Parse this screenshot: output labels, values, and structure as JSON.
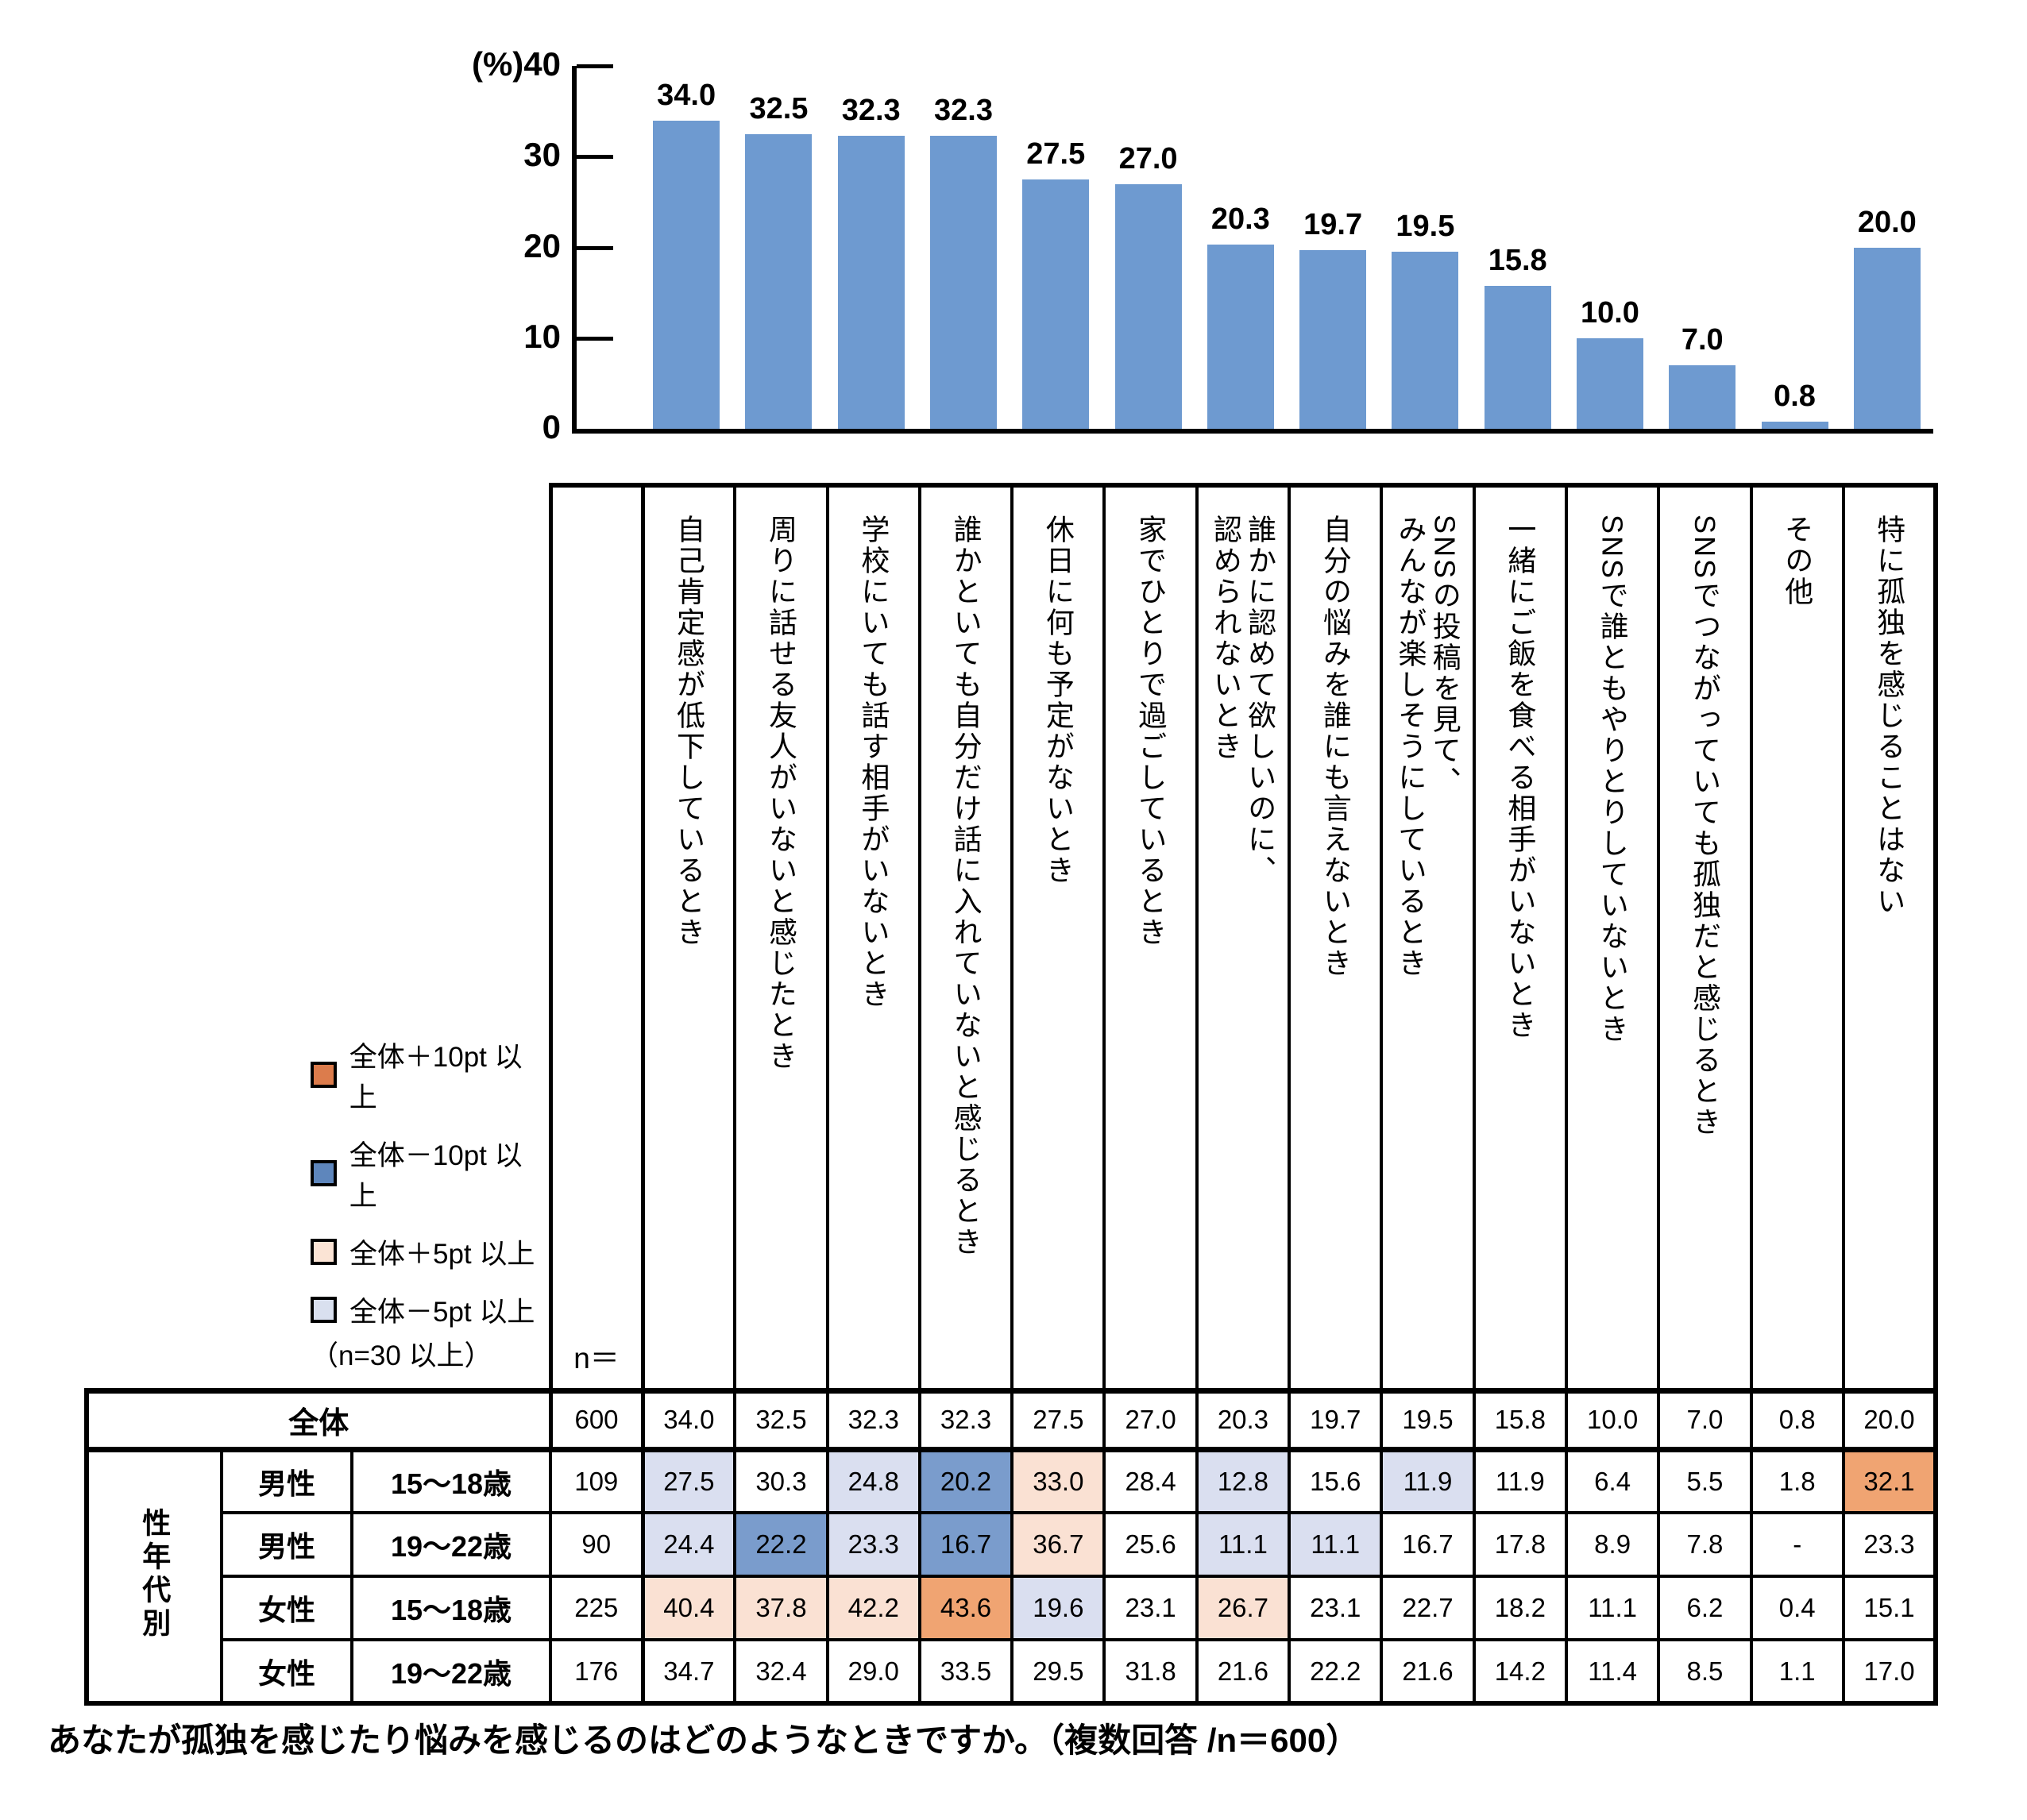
{
  "chart_data": {
    "type": "bar",
    "title": "",
    "unit_label": "(%)",
    "ylim": [
      0,
      40
    ],
    "grid": false,
    "bar_color": "#6E9AD0",
    "yticks": [
      {
        "value": 40,
        "label": "(%)40"
      },
      {
        "value": 30,
        "label": "30"
      },
      {
        "value": 20,
        "label": "20"
      },
      {
        "value": 10,
        "label": "10"
      },
      {
        "value": 0,
        "label": "0"
      }
    ],
    "categories": [
      "自己肯定感が低下しているとき",
      "周りに話せる友人がいないと感じたとき",
      "学校にいても話す相手がいないとき",
      "誰かといても自分だけ話に入れていないと感じるとき",
      "休日に何も予定がないとき",
      "家でひとりで過ごしているとき",
      "誰かに認めて欲しいのに、\n認められないとき",
      "自分の悩みを誰にも言えないとき",
      "SNSの投稿を見て、\nみんなが楽しそうにしているとき",
      "一緒にご飯を食べる相手がいないとき",
      "SNSで誰ともやりとりしていないとき",
      "SNSでつながっていても孤独だと感じるとき",
      "その他",
      "特に孤独を感じることはない"
    ],
    "values": [
      34.0,
      32.5,
      32.3,
      32.3,
      27.5,
      27.0,
      20.3,
      19.7,
      19.5,
      15.8,
      10.0,
      7.0,
      0.8,
      20.0
    ],
    "value_labels": [
      "34.0",
      "32.5",
      "32.3",
      "32.3",
      "27.5",
      "27.0",
      "20.3",
      "19.7",
      "19.5",
      "15.8",
      "10.0",
      "7.0",
      "0.8",
      "20.0"
    ]
  },
  "legend": {
    "items": [
      {
        "label": "全体＋10pt 以上",
        "color": "#DC7C4C"
      },
      {
        "label": "全体－10pt 以上",
        "color": "#5E86BC"
      },
      {
        "label": "全体＋5pt 以上",
        "color": "#FBE4D5"
      },
      {
        "label": "全体－5pt 以上",
        "color": "#D9E0EF"
      }
    ],
    "note": "（n=30 以上）"
  },
  "table": {
    "n_label": "n＝",
    "group_label": "性年代別",
    "highlight_colors": {
      "plus10": "#F0A472",
      "minus10": "#7A9CCC",
      "plus5": "#FAE1D3",
      "minus5": "#DADFF0"
    },
    "rows": [
      {
        "group": "全体",
        "gender": "",
        "age": "",
        "n": "600",
        "values": [
          "34.0",
          "32.5",
          "32.3",
          "32.3",
          "27.5",
          "27.0",
          "20.3",
          "19.7",
          "19.5",
          "15.8",
          "10.0",
          "7.0",
          "0.8",
          "20.0"
        ],
        "highlights": [
          "",
          "",
          "",
          "",
          "",
          "",
          "",
          "",
          "",
          "",
          "",
          "",
          "",
          ""
        ]
      },
      {
        "group": "性年代別",
        "gender": "男性",
        "age": "15〜18歳",
        "n": "109",
        "values": [
          "27.5",
          "30.3",
          "24.8",
          "20.2",
          "33.0",
          "28.4",
          "12.8",
          "15.6",
          "11.9",
          "11.9",
          "6.4",
          "5.5",
          "1.8",
          "32.1"
        ],
        "highlights": [
          "minus5",
          "",
          "minus5",
          "minus10",
          "plus5",
          "",
          "minus5",
          "",
          "minus5",
          "",
          "",
          "",
          "",
          "plus10"
        ]
      },
      {
        "group": "性年代別",
        "gender": "男性",
        "age": "19〜22歳",
        "n": "90",
        "values": [
          "24.4",
          "22.2",
          "23.3",
          "16.7",
          "36.7",
          "25.6",
          "11.1",
          "11.1",
          "16.7",
          "17.8",
          "8.9",
          "7.8",
          "-",
          "23.3"
        ],
        "highlights": [
          "minus5",
          "minus10",
          "minus5",
          "minus10",
          "plus5",
          "",
          "minus5",
          "minus5",
          "",
          "",
          "",
          "",
          "",
          ""
        ]
      },
      {
        "group": "性年代別",
        "gender": "女性",
        "age": "15〜18歳",
        "n": "225",
        "values": [
          "40.4",
          "37.8",
          "42.2",
          "43.6",
          "19.6",
          "23.1",
          "26.7",
          "23.1",
          "22.7",
          "18.2",
          "11.1",
          "6.2",
          "0.4",
          "15.1"
        ],
        "highlights": [
          "plus5",
          "plus5",
          "plus5",
          "plus10",
          "minus5",
          "",
          "plus5",
          "",
          "",
          "",
          "",
          "",
          "",
          ""
        ]
      },
      {
        "group": "性年代別",
        "gender": "女性",
        "age": "19〜22歳",
        "n": "176",
        "values": [
          "34.7",
          "32.4",
          "29.0",
          "33.5",
          "29.5",
          "31.8",
          "21.6",
          "22.2",
          "21.6",
          "14.2",
          "11.4",
          "8.5",
          "1.1",
          "17.0"
        ],
        "highlights": [
          "",
          "",
          "",
          "",
          "",
          "",
          "",
          "",
          "",
          "",
          "",
          "",
          "",
          ""
        ]
      }
    ]
  },
  "caption": "あなたが孤独を感じたり悩みを感じるのはどのようなときですか。（複数回答 /n＝600）"
}
